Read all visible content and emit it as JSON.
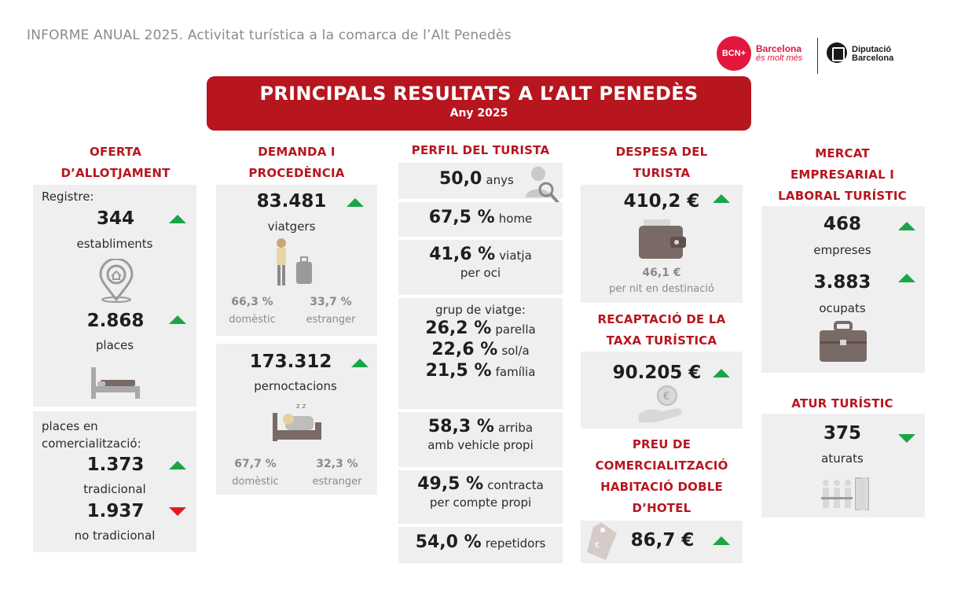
{
  "header": {
    "title": "INFORME ANUAL 2025. Activitat turística a la comarca de l’Alt Penedès",
    "logo_bcn": "BCN+",
    "logo_bcn_line1": "Barcelona",
    "logo_bcn_line2": "és molt més",
    "logo_dip_line1": "Diputació",
    "logo_dip_line2": "Barcelona"
  },
  "banner": {
    "title": "PRINCIPALS RESULTATS A L’ALT PENEDÈS",
    "subtitle": "Any 2025"
  },
  "colors": {
    "accent": "#b7161f",
    "panel": "#efefef",
    "up": "#19a648",
    "down_red": "#e01b22"
  },
  "oferta": {
    "heading_l1": "OFERTA",
    "heading_l2": "D’ALLOTJAMENT",
    "registre_label": "Registre:",
    "establiments_value": "344",
    "establiments_label": "establiments",
    "places_value": "2.868",
    "places_label": "places",
    "comerc_label_l1": "places en",
    "comerc_label_l2": "comercialització:",
    "tradicional_value": "1.373",
    "tradicional_label": "tradicional",
    "no_tradicional_value": "1.937",
    "no_tradicional_label": "no tradicional"
  },
  "demanda": {
    "heading_l1": "DEMANDA I",
    "heading_l2": "PROCEDÈNCIA",
    "viatgers_value": "83.481",
    "viatgers_label": "viatgers",
    "viatgers_domestic_pct": "66,3 %",
    "viatgers_foreign_pct": "33,7 %",
    "domestic_label": "domèstic",
    "foreign_label": "estranger",
    "pernoctacions_value": "173.312",
    "pernoctacions_label": "pernoctacions",
    "pernoct_domestic_pct": "67,7 %",
    "pernoct_foreign_pct": "32,3 %"
  },
  "perfil": {
    "heading": "PERFIL DEL TURISTA",
    "age_value": "50,0",
    "age_label": "anys",
    "home_value": "67,5 %",
    "home_label": "home",
    "oci_value": "41,6 %",
    "oci_label_l1": "viatja",
    "oci_label_l2": "per oci",
    "grup_label": "grup de viatge:",
    "parella_value": "26,2 %",
    "parella_label": "parella",
    "sol_value": "22,6 %",
    "sol_label": "sol/a",
    "familia_value": "21,5 %",
    "familia_label": "família",
    "vehicle_value": "58,3 %",
    "vehicle_label_l1": "arriba",
    "vehicle_label_l2": "amb vehicle propi",
    "contracta_value": "49,5 %",
    "contracta_label_l1": "contracta",
    "contracta_label_l2": "per compte propi",
    "repetidors_value": "54,0 %",
    "repetidors_label": "repetidors"
  },
  "despesa": {
    "heading_l1": "DESPESA DEL",
    "heading_l2": "TURISTA",
    "value": "410,2 €",
    "per_nit_value": "46,1 €",
    "per_nit_label": "per nit en destinació",
    "taxa_heading_l1": "RECAPTACIÓ DE LA",
    "taxa_heading_l2": "TAXA TURÍSTICA",
    "taxa_value": "90.205 €",
    "preu_heading_l1": "PREU DE",
    "preu_heading_l2": "COMERCIALITZACIÓ",
    "preu_heading_l3": "HABITACIÓ DOBLE",
    "preu_heading_l4": "D’HOTEL",
    "preu_value": "86,7 €"
  },
  "mercat": {
    "heading_l1": "MERCAT",
    "heading_l2": "EMPRESARIAL I",
    "heading_l3": "LABORAL TURÍSTIC",
    "empreses_value": "468",
    "empreses_label": "empreses",
    "ocupats_value": "3.883",
    "ocupats_label": "ocupats",
    "atur_heading": "ATUR TURÍSTIC",
    "aturats_value": "375",
    "aturats_label": "aturats"
  }
}
